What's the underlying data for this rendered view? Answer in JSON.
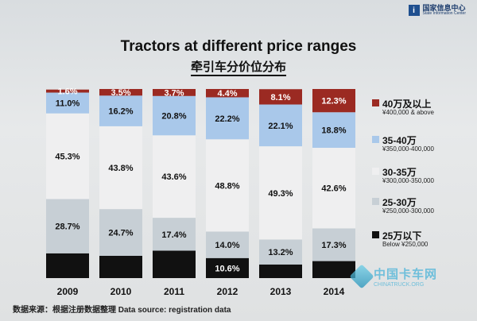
{
  "logo": {
    "cn": "国家信息中心",
    "en": "State Information Center"
  },
  "source": "数据来源：根据注册数据整理 Data source: registration data",
  "watermark": {
    "cn": "中国卡车网",
    "en": "CHINATRUCK.ORG"
  },
  "chart_data": {
    "type": "bar",
    "stacked": true,
    "title": "Tractors at different price ranges",
    "subtitle": "牵引车分价位分布",
    "categories": [
      "2009",
      "2010",
      "2011",
      "2012",
      "2013",
      "2014"
    ],
    "series": [
      {
        "name": "25万以下",
        "name_en": "Below ¥250,000",
        "color": "#111111",
        "values": [
          13.1,
          11.8,
          14.5,
          10.6,
          7.2,
          9.0
        ],
        "labels": [
          "",
          "",
          "",
          "10.6%",
          "",
          ""
        ]
      },
      {
        "name": "25-30万",
        "name_en": "¥250,000-300,000",
        "color": "#c7cfd5",
        "values": [
          28.7,
          24.7,
          17.4,
          14.0,
          13.2,
          17.3
        ],
        "labels": [
          "28.7%",
          "24.7%",
          "17.4%",
          "14.0%",
          "13.2%",
          "17.3%"
        ]
      },
      {
        "name": "30-35万",
        "name_en": "¥300,000-350,000",
        "color": "#efeff0",
        "values": [
          45.3,
          43.8,
          43.6,
          48.8,
          49.3,
          42.6
        ],
        "labels": [
          "45.3%",
          "43.8%",
          "43.6%",
          "48.8%",
          "49.3%",
          "42.6%"
        ]
      },
      {
        "name": "35-40万",
        "name_en": "¥350,000-400,000",
        "color": "#a9c8ea",
        "values": [
          11.0,
          16.2,
          20.8,
          22.2,
          22.1,
          18.8
        ],
        "labels": [
          "11.0%",
          "16.2%",
          "20.8%",
          "22.2%",
          "22.1%",
          "18.8%"
        ]
      },
      {
        "name": "40万及以上",
        "name_en": "¥400,000 & above",
        "color": "#9b2a22",
        "values": [
          1.6,
          3.5,
          3.7,
          4.4,
          8.1,
          12.3
        ],
        "labels": [
          "1.6%",
          "3.5%",
          "3.7%",
          "4.4%",
          "8.1%",
          "12.3%"
        ]
      }
    ],
    "legend_order": [
      4,
      3,
      2,
      1,
      0
    ],
    "ylim": [
      0,
      100
    ],
    "grid": false,
    "legend": "right"
  }
}
